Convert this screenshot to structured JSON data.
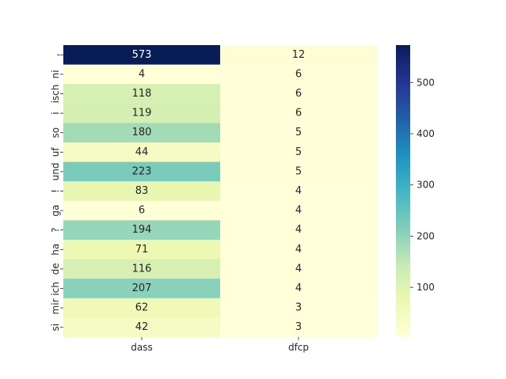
{
  "chart_data": {
    "type": "heatmap",
    "title": "",
    "xlabel": "",
    "ylabel": "",
    "columns": [
      "dass",
      "dfcp"
    ],
    "rows": [
      ",",
      "ni",
      "isch",
      "i",
      "so",
      "uf",
      "und",
      "!",
      "ga",
      "?",
      "ha",
      "de",
      "ich",
      "mir",
      "si"
    ],
    "yticklabels_shown": [
      ",",
      "ni",
      "isch",
      "i",
      "so",
      "uf",
      "und",
      "!",
      "ga",
      "?",
      "ha",
      "de",
      "mir ich",
      "si"
    ],
    "values": [
      [
        573,
        12
      ],
      [
        4,
        6
      ],
      [
        118,
        6
      ],
      [
        119,
        6
      ],
      [
        180,
        5
      ],
      [
        44,
        5
      ],
      [
        223,
        5
      ],
      [
        83,
        4
      ],
      [
        6,
        4
      ],
      [
        194,
        4
      ],
      [
        71,
        4
      ],
      [
        116,
        4
      ],
      [
        207,
        4
      ],
      [
        62,
        3
      ],
      [
        42,
        3
      ]
    ],
    "colormap": "YlGnBu",
    "colorbar": {
      "min": 3,
      "max": 573,
      "ticks": [
        100,
        200,
        300,
        400,
        500
      ]
    }
  }
}
